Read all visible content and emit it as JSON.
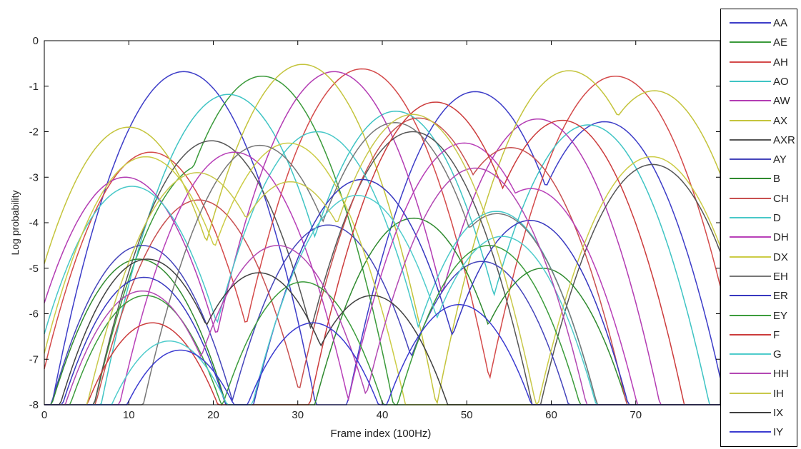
{
  "chart_data": {
    "type": "line",
    "title": "",
    "xlabel": "Frame index (100Hz)",
    "ylabel": "Log probability",
    "xlim": [
      0,
      80
    ],
    "ylim": [
      -8,
      0
    ],
    "xticks": [
      0,
      10,
      20,
      30,
      40,
      50,
      60,
      70
    ],
    "yticks": [
      0,
      -1,
      -2,
      -3,
      -4,
      -5,
      -6,
      -7,
      -8
    ],
    "grid": false,
    "legend_position": "right",
    "series": [
      {
        "name": "AA",
        "color": "#3d3dc8",
        "peaks": [
          [
            16.5,
            -0.68
          ],
          [
            51.0,
            -1.12
          ],
          [
            66.3,
            -1.78
          ]
        ]
      },
      {
        "name": "AE",
        "color": "#3a9a3a",
        "peaks": [
          [
            25.8,
            -0.78
          ],
          [
            19.2,
            -2.7
          ]
        ]
      },
      {
        "name": "AH",
        "color": "#d44a4a",
        "peaks": [
          [
            37.6,
            -0.62
          ],
          [
            67.6,
            -0.78
          ],
          [
            12.6,
            -2.45
          ]
        ]
      },
      {
        "name": "AO",
        "color": "#3fc4c4",
        "peaks": [
          [
            21.8,
            -1.18
          ],
          [
            41.6,
            -1.55
          ],
          [
            64.4,
            -1.85
          ]
        ]
      },
      {
        "name": "AW",
        "color": "#b33cb3",
        "peaks": [
          [
            34.3,
            -0.68
          ],
          [
            58.4,
            -1.72
          ],
          [
            9.6,
            -3.0
          ]
        ]
      },
      {
        "name": "AX",
        "color": "#c4c43c",
        "peaks": [
          [
            30.6,
            -0.52
          ],
          [
            62.1,
            -0.66
          ],
          [
            72.2,
            -1.1
          ],
          [
            10.0,
            -1.9
          ]
        ]
      },
      {
        "name": "AXR",
        "color": "#555555",
        "peaks": [
          [
            19.8,
            -2.2
          ],
          [
            43.6,
            -2.0
          ],
          [
            72.0,
            -2.72
          ]
        ]
      },
      {
        "name": "AY",
        "color": "#4545bb",
        "peaks": [
          [
            11.6,
            -4.5
          ],
          [
            33.6,
            -4.05
          ],
          [
            51.8,
            -4.85
          ]
        ]
      },
      {
        "name": "B",
        "color": "#2f8a2f",
        "peaks": [
          [
            11.2,
            -4.8
          ],
          [
            43.7,
            -3.9
          ],
          [
            59.0,
            -5.0
          ]
        ]
      },
      {
        "name": "CH",
        "color": "#c85050",
        "peaks": [
          [
            18.3,
            -3.5
          ],
          [
            44.3,
            -1.7
          ],
          [
            55.2,
            -2.35
          ]
        ]
      },
      {
        "name": "D",
        "color": "#48c8c8",
        "peaks": [
          [
            10.4,
            -3.2
          ],
          [
            32.3,
            -2.0
          ],
          [
            53.5,
            -3.75
          ]
        ]
      },
      {
        "name": "DH",
        "color": "#b840b8",
        "peaks": [
          [
            22.5,
            -2.45
          ],
          [
            49.7,
            -2.25
          ],
          [
            57.6,
            -3.25
          ]
        ]
      },
      {
        "name": "DX",
        "color": "#cccc45",
        "peaks": [
          [
            12.0,
            -2.55
          ],
          [
            28.9,
            -2.25
          ],
          [
            71.9,
            -2.55
          ]
        ]
      },
      {
        "name": "EH",
        "color": "#777777",
        "peaks": [
          [
            25.5,
            -2.3
          ],
          [
            41.5,
            -1.8
          ],
          [
            53.6,
            -3.8
          ]
        ]
      },
      {
        "name": "ER",
        "color": "#3838c0",
        "peaks": [
          [
            11.8,
            -5.2
          ],
          [
            37.6,
            -3.05
          ],
          [
            57.5,
            -3.95
          ]
        ]
      },
      {
        "name": "EY",
        "color": "#3c9c3c",
        "peaks": [
          [
            12.0,
            -5.6
          ],
          [
            30.6,
            -5.3
          ],
          [
            52.6,
            -4.5
          ]
        ]
      },
      {
        "name": "F",
        "color": "#cc3c3c",
        "peaks": [
          [
            12.8,
            -6.2
          ],
          [
            46.3,
            -1.35
          ],
          [
            61.3,
            -1.75
          ]
        ]
      },
      {
        "name": "G",
        "color": "#50cccc",
        "peaks": [
          [
            14.8,
            -6.6
          ],
          [
            37.0,
            -3.4
          ],
          [
            54.2,
            -4.3
          ]
        ]
      },
      {
        "name": "HH",
        "color": "#b348b3",
        "peaks": [
          [
            11.6,
            -5.5
          ],
          [
            27.6,
            -4.5
          ],
          [
            51.0,
            -2.8
          ]
        ]
      },
      {
        "name": "IH",
        "color": "#c8c84a",
        "peaks": [
          [
            18.1,
            -2.9
          ],
          [
            29.1,
            -3.1
          ],
          [
            43.6,
            -1.62
          ]
        ]
      },
      {
        "name": "IX",
        "color": "#404040",
        "peaks": [
          [
            12.2,
            -4.8
          ],
          [
            25.4,
            -5.1
          ],
          [
            38.8,
            -5.6
          ]
        ]
      },
      {
        "name": "IY",
        "color": "#3b3bd0",
        "peaks": [
          [
            16.1,
            -6.8
          ],
          [
            31.8,
            -6.2
          ],
          [
            49.1,
            -5.8
          ]
        ]
      }
    ]
  }
}
